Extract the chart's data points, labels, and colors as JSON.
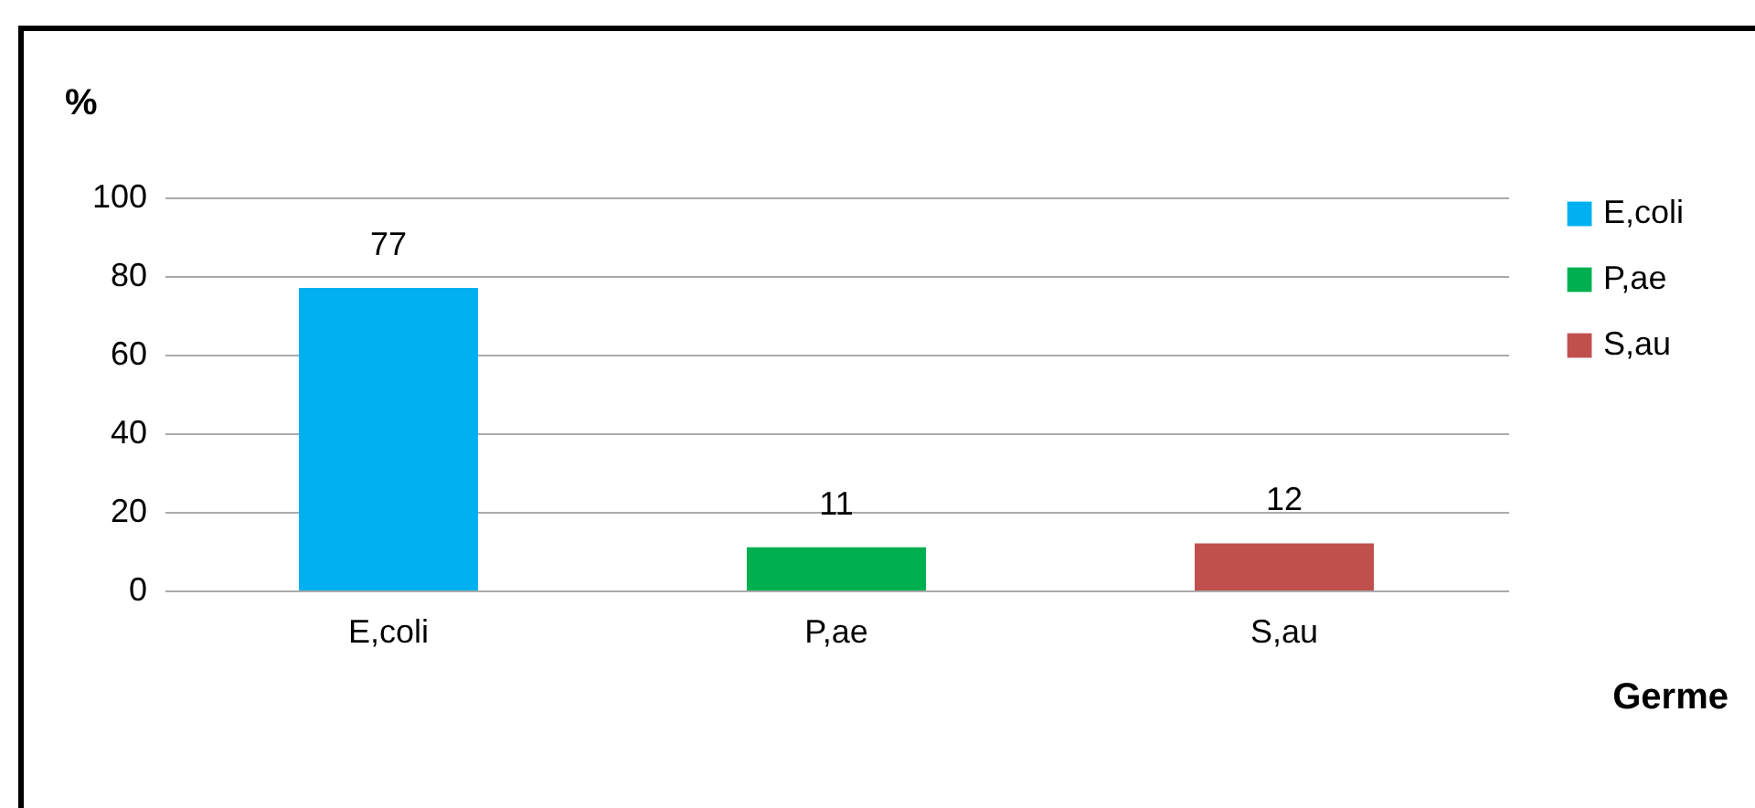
{
  "chart_data": {
    "type": "bar",
    "xlabel": "Germe",
    "ylabel": "%",
    "categories": [
      "E,coli",
      "P,ae",
      "S,au"
    ],
    "series": [
      {
        "name": "E,coli",
        "color": "#00b0f0",
        "values": [
          77,
          null,
          null
        ]
      },
      {
        "name": "P,ae",
        "color": "#00b050",
        "values": [
          null,
          11,
          null
        ]
      },
      {
        "name": "S,au",
        "color": "#c0504d",
        "values": [
          null,
          null,
          12
        ]
      }
    ],
    "ylim": [
      0,
      100
    ],
    "yticks": [
      0,
      20,
      40,
      60,
      80,
      100
    ],
    "grid": "y",
    "legend": "right",
    "data_labels": true
  }
}
